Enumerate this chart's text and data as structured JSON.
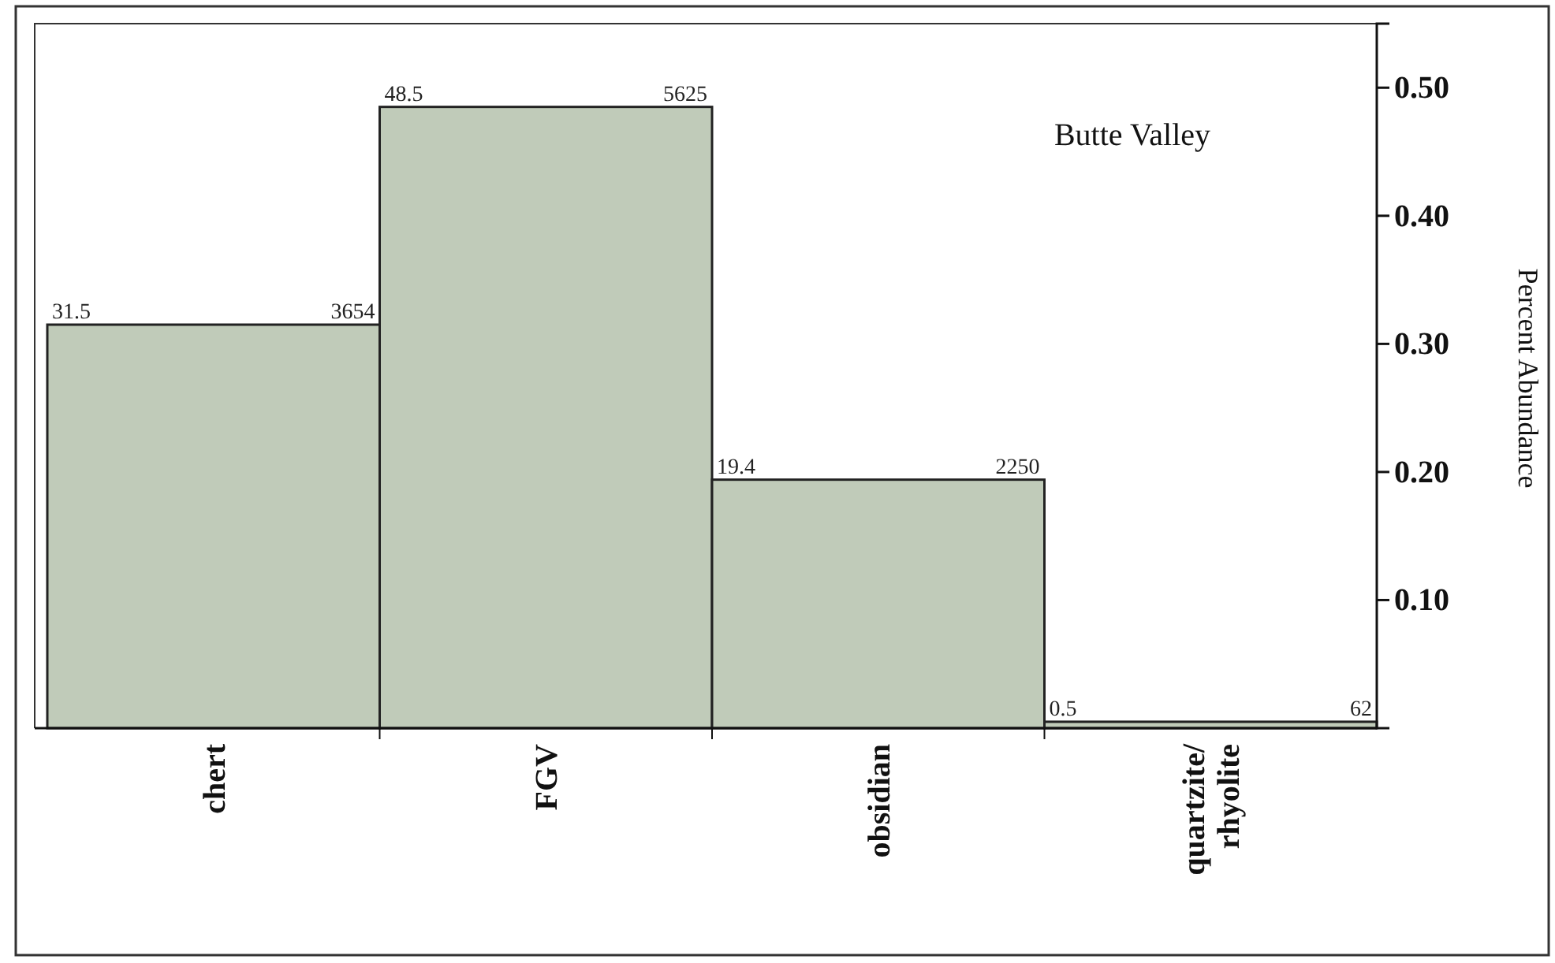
{
  "chart_data": {
    "type": "bar",
    "title": "Butte Valley",
    "ylabel": "Percent Abundance",
    "categories": [
      "chert",
      "FGV",
      "obsidian",
      "quartzite/rhyolite"
    ],
    "values": [
      0.315,
      0.485,
      0.194,
      0.005
    ],
    "color": "#c0cbb9",
    "annotations": [
      "31.5",
      "3654",
      "48.5",
      "5625",
      "19.4",
      "2250",
      "0.5",
      "62"
    ],
    "ylim": [
      0,
      0.55
    ],
    "yticks": [
      {
        "value": 0.1,
        "label": "0.10"
      },
      {
        "value": 0.2,
        "label": "0.20"
      },
      {
        "value": 0.3,
        "label": "0.30"
      },
      {
        "value": 0.4,
        "label": "0.40"
      },
      {
        "value": 0.5,
        "label": "0.50"
      }
    ],
    "grid": false
  }
}
